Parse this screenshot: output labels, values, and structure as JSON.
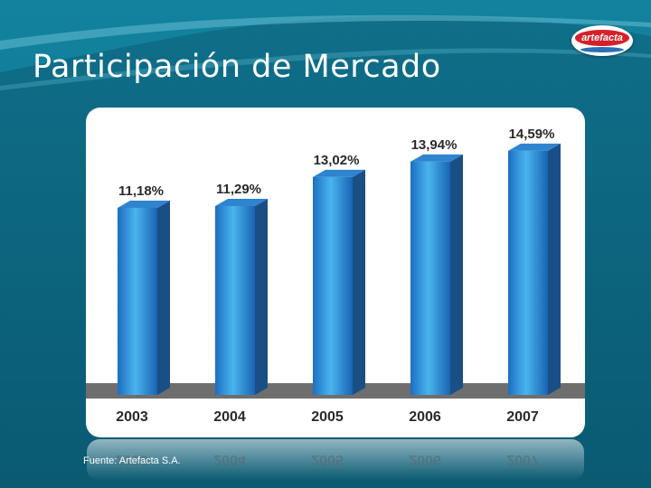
{
  "slide": {
    "title": "Participación de Mercado",
    "logo_text": "artefacta",
    "source": "Fuente: Artefacta S.A."
  },
  "colors": {
    "background": "#0b5f78",
    "panel": "#ffffff",
    "floor": "#707070",
    "bar_front": "#2e8fd6",
    "bar_side": "#1a4f86",
    "label": "#2a2a2a"
  },
  "chart_data": {
    "type": "bar",
    "title": "",
    "xlabel": "",
    "ylabel": "",
    "categories": [
      "2003",
      "2004",
      "2005",
      "2006",
      "2007"
    ],
    "values": [
      11.18,
      11.29,
      13.02,
      13.94,
      14.59
    ],
    "value_labels": [
      "11,18%",
      "11,29%",
      "13,02%",
      "13,94%",
      "14,59%"
    ],
    "ylim": [
      0,
      15.5
    ],
    "grid": false,
    "legend": "none"
  }
}
